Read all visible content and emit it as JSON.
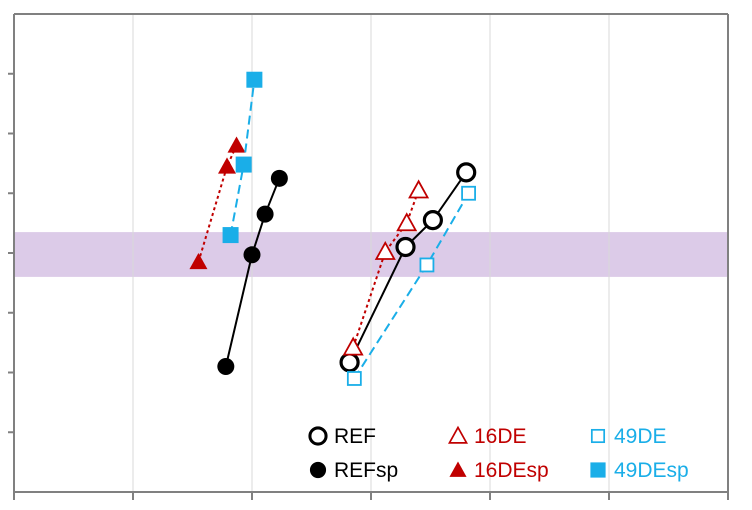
{
  "chart_data": {
    "type": "scatter",
    "title": "",
    "xlabel": "",
    "ylabel": "",
    "xlim": [
      0,
      6
    ],
    "ylim": [
      0,
      8
    ],
    "grid": true,
    "legend_placement": "bottom-right",
    "highlight_band": {
      "y0": 3.6,
      "y1": 4.35,
      "color": "#dccbe8"
    },
    "colors": {
      "black": "#000000",
      "red": "#c00000",
      "blue": "#1aaee8",
      "axis": "#808080",
      "grid": "#d9d9d9"
    },
    "series": [
      {
        "name": "REF",
        "color": "#000000",
        "marker": "circle-open",
        "line": "solid",
        "x": [
          2.82,
          3.29,
          3.52,
          3.8
        ],
        "y": [
          2.17,
          4.1,
          4.55,
          5.35
        ]
      },
      {
        "name": "REFsp",
        "color": "#000000",
        "marker": "circle-filled",
        "line": "solid",
        "x": [
          1.78,
          2.0,
          2.11,
          2.23
        ],
        "y": [
          2.1,
          3.97,
          4.65,
          5.25
        ]
      },
      {
        "name": "16DE",
        "color": "#c00000",
        "marker": "triangle-open",
        "line": "dotted",
        "x": [
          2.85,
          3.12,
          3.3,
          3.4
        ],
        "y": [
          2.42,
          4.02,
          4.5,
          5.05
        ]
      },
      {
        "name": "16DEsp",
        "color": "#c00000",
        "marker": "triangle-filled",
        "line": "dotted",
        "x": [
          1.55,
          1.79,
          1.87
        ],
        "y": [
          3.85,
          5.45,
          5.8
        ]
      },
      {
        "name": "49DE",
        "color": "#1aaee8",
        "marker": "square-open",
        "line": "dashed",
        "x": [
          2.86,
          3.47,
          3.82
        ],
        "y": [
          1.9,
          3.8,
          5.0
        ]
      },
      {
        "name": "49DEsp",
        "color": "#1aaee8",
        "marker": "square-filled",
        "line": "dashed",
        "x": [
          1.82,
          1.93,
          2.02
        ],
        "y": [
          4.3,
          5.48,
          6.9
        ]
      }
    ],
    "legend": [
      {
        "label": "REF",
        "series": 0,
        "row": 0,
        "col": 0
      },
      {
        "label": "16DE",
        "series": 2,
        "row": 0,
        "col": 1
      },
      {
        "label": "49DE",
        "series": 4,
        "row": 0,
        "col": 2
      },
      {
        "label": "REFsp",
        "series": 1,
        "row": 1,
        "col": 0
      },
      {
        "label": "16DEsp",
        "series": 3,
        "row": 1,
        "col": 1
      },
      {
        "label": "49DEsp",
        "series": 5,
        "row": 1,
        "col": 2
      }
    ]
  }
}
